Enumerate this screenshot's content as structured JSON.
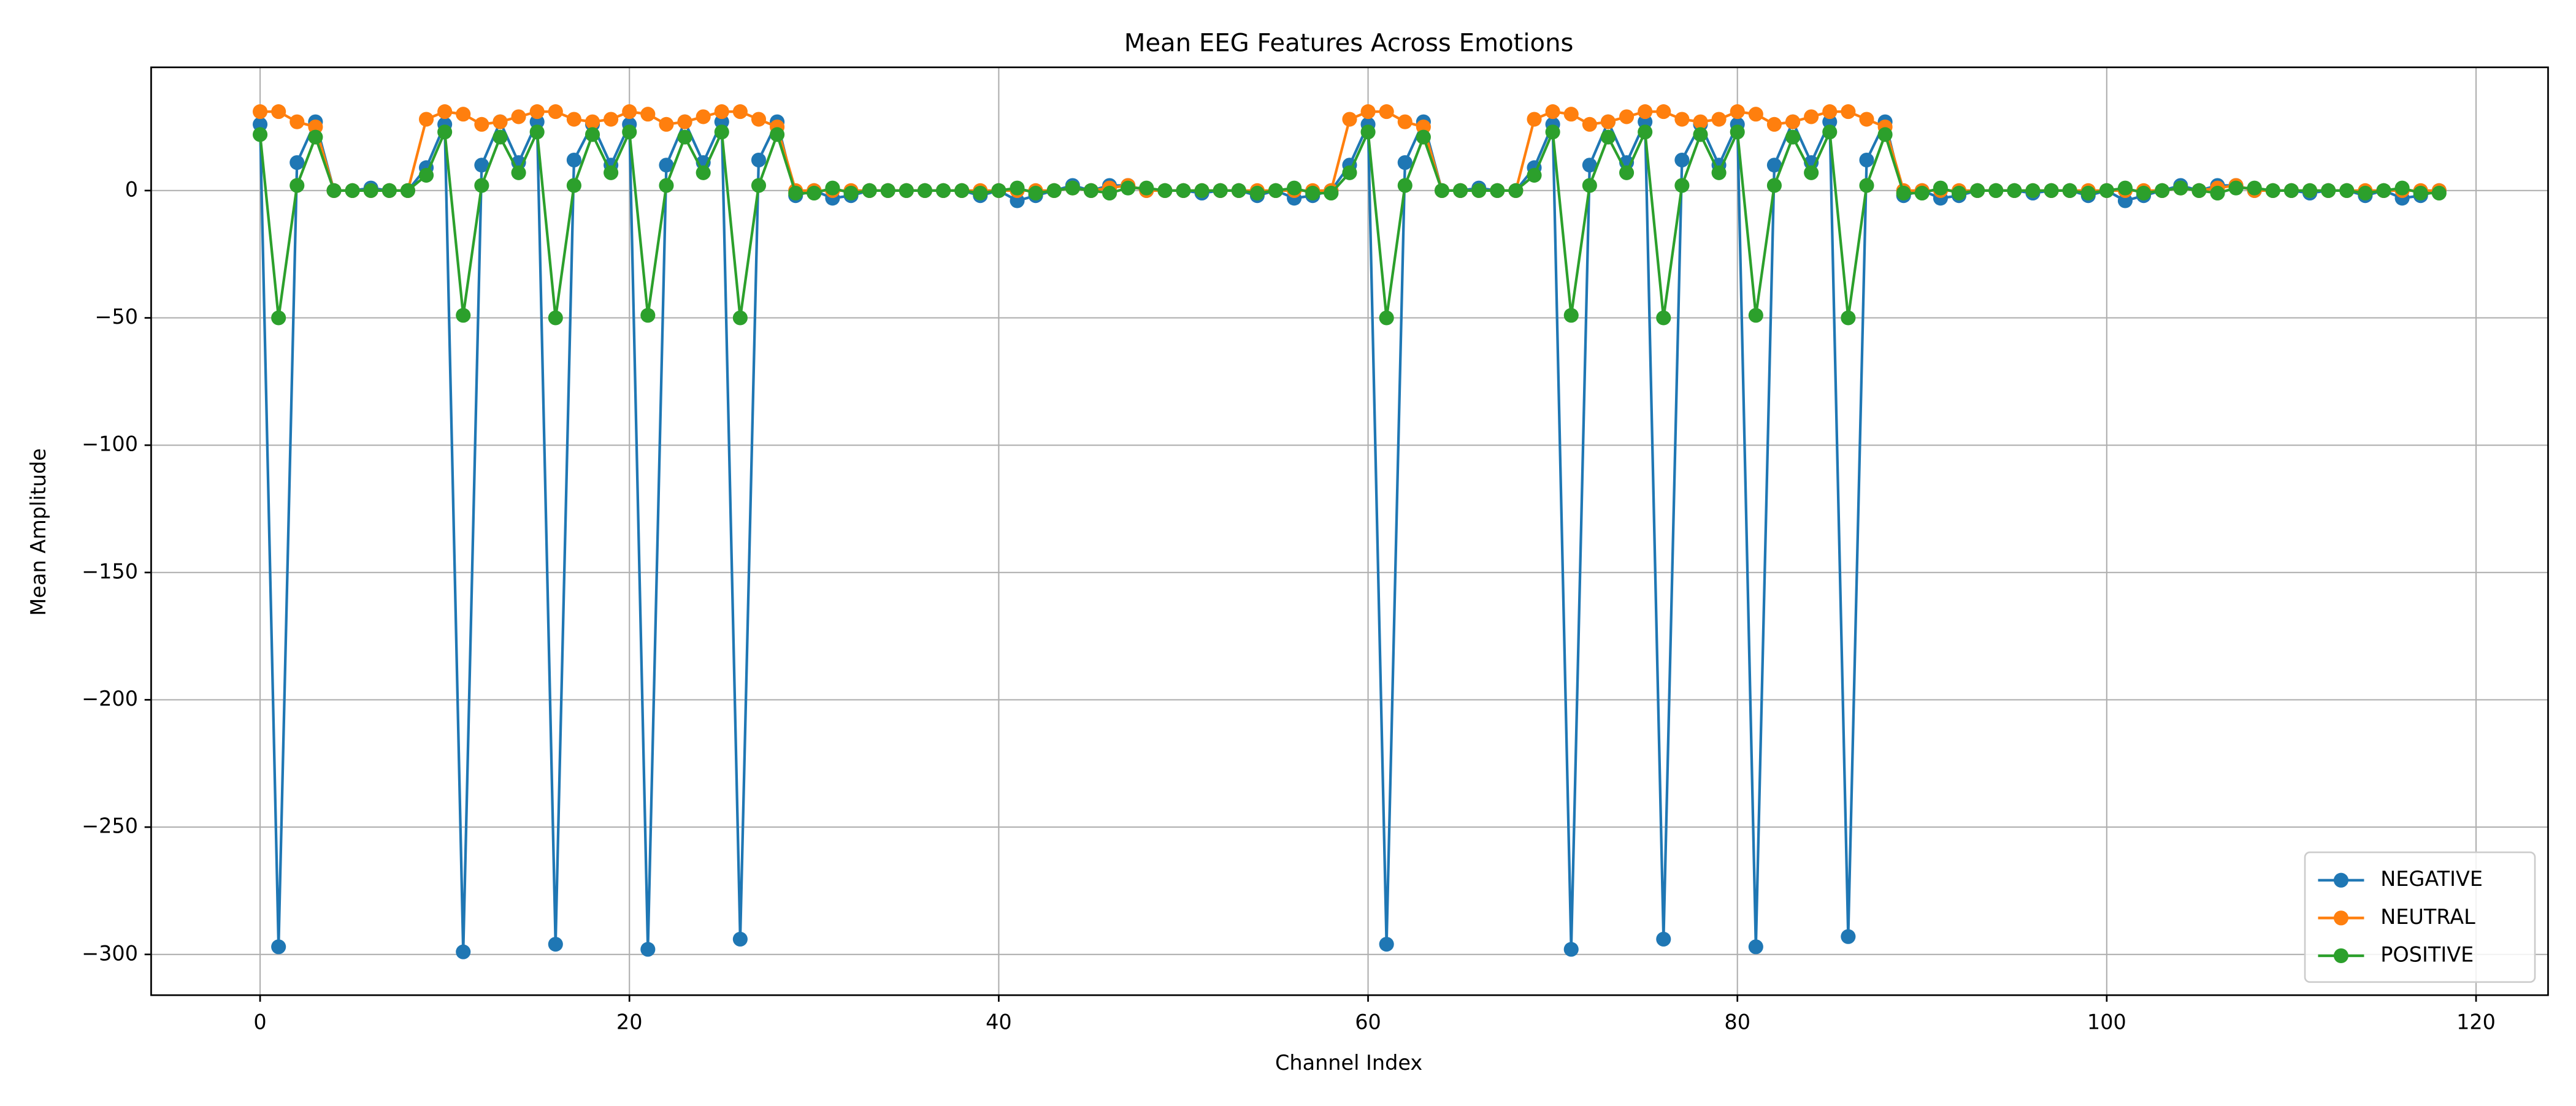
{
  "chart_data": {
    "type": "line",
    "title": "Mean EEG Features Across Emotions",
    "x_label": "Channel Index",
    "y_label": "Mean Amplitude",
    "x": [
      0,
      1,
      2,
      3,
      4,
      5,
      6,
      7,
      8,
      9,
      10,
      11,
      12,
      13,
      14,
      15,
      16,
      17,
      18,
      19,
      20,
      21,
      22,
      23,
      24,
      25,
      26,
      27,
      28,
      29,
      30,
      31,
      32,
      33,
      34,
      35,
      36,
      37,
      38,
      39,
      40,
      41,
      42,
      43,
      44,
      45,
      46,
      47,
      48,
      49,
      50,
      51,
      52,
      53,
      54,
      55,
      56,
      57,
      58,
      59,
      60,
      61,
      62,
      63,
      64,
      65,
      66,
      67,
      68,
      69,
      70,
      71,
      72,
      73,
      74,
      75,
      76,
      77,
      78,
      79,
      80,
      81,
      82,
      83,
      84,
      85,
      86,
      87,
      88,
      89,
      90,
      91,
      92,
      93,
      94,
      95,
      96,
      97,
      98,
      99,
      100,
      101,
      102,
      103,
      104,
      105,
      106,
      107,
      108,
      109,
      110,
      111,
      112,
      113,
      114,
      115,
      116,
      117,
      118
    ],
    "series": [
      {
        "name": "NEGATIVE",
        "color": "#1f77b4",
        "values": [
          26,
          -297,
          11,
          27,
          0,
          0,
          1,
          0,
          0,
          9,
          26,
          -299,
          10,
          27,
          11,
          27,
          -296,
          12,
          26,
          10,
          26,
          -298,
          10,
          27,
          11,
          27,
          -294,
          12,
          27,
          -2,
          0,
          -3,
          -2,
          0,
          0,
          0,
          0,
          0,
          0,
          -2,
          0,
          -4,
          -2,
          0,
          2,
          0,
          2,
          2,
          0,
          0,
          0,
          -1,
          0,
          0,
          -2,
          0,
          -3,
          -2,
          0,
          10,
          26,
          -296,
          11,
          27,
          0,
          0,
          1,
          0,
          0,
          9,
          26,
          -298,
          10,
          27,
          11,
          27,
          -294,
          12,
          26,
          10,
          26,
          -297,
          10,
          27,
          11,
          27,
          -293,
          12,
          27,
          -2,
          0,
          -3,
          -2,
          0,
          0,
          0,
          -1,
          0,
          0,
          -2,
          0,
          -4,
          -2,
          0,
          2,
          0,
          2,
          2,
          0,
          0,
          0,
          -1,
          0,
          0,
          -2,
          0,
          -3,
          -2,
          0
        ]
      },
      {
        "name": "NEUTRAL",
        "color": "#ff7f0e",
        "values": [
          31,
          31,
          27,
          25,
          0,
          0,
          0,
          0,
          0,
          28,
          31,
          30,
          26,
          27,
          29,
          31,
          31,
          28,
          27,
          28,
          31,
          30,
          26,
          27,
          29,
          31,
          31,
          28,
          25,
          0,
          0,
          0,
          0,
          0,
          0,
          0,
          0,
          0,
          0,
          0,
          0,
          0,
          0,
          0,
          1,
          0,
          1,
          2,
          0,
          0,
          0,
          0,
          0,
          0,
          0,
          0,
          0,
          0,
          0,
          28,
          31,
          31,
          27,
          25,
          0,
          0,
          0,
          0,
          0,
          28,
          31,
          30,
          26,
          27,
          29,
          31,
          31,
          28,
          27,
          28,
          31,
          30,
          26,
          27,
          29,
          31,
          31,
          28,
          25,
          0,
          0,
          0,
          0,
          0,
          0,
          0,
          0,
          0,
          0,
          0,
          0,
          0,
          0,
          0,
          1,
          0,
          1,
          2,
          0,
          0,
          0,
          0,
          0,
          0,
          0,
          0,
          0,
          0,
          0
        ]
      },
      {
        "name": "POSITIVE",
        "color": "#2ca02c",
        "values": [
          22,
          -50,
          2,
          21,
          0,
          0,
          0,
          0,
          0,
          6,
          23,
          -49,
          2,
          21,
          7,
          23,
          -50,
          2,
          22,
          7,
          23,
          -49,
          2,
          21,
          7,
          23,
          -50,
          2,
          22,
          -1,
          -1,
          1,
          -1,
          0,
          0,
          0,
          0,
          0,
          0,
          -1,
          0,
          1,
          -1,
          0,
          1,
          0,
          -1,
          1,
          1,
          0,
          0,
          0,
          0,
          0,
          -1,
          0,
          1,
          -1,
          -1,
          7,
          23,
          -50,
          2,
          21,
          0,
          0,
          0,
          0,
          0,
          6,
          23,
          -49,
          2,
          21,
          7,
          23,
          -50,
          2,
          22,
          7,
          23,
          -49,
          2,
          21,
          7,
          23,
          -50,
          2,
          22,
          -1,
          -1,
          1,
          -1,
          0,
          0,
          0,
          0,
          0,
          0,
          -1,
          0,
          1,
          -1,
          0,
          1,
          0,
          -1,
          1,
          1,
          0,
          0,
          0,
          0,
          0,
          -1,
          0,
          1,
          -1,
          -1
        ]
      }
    ],
    "xlim": [
      -5.9,
      123.9
    ],
    "ylim": [
      -316,
      48.4
    ],
    "xticks": [
      0,
      20,
      40,
      60,
      80,
      100,
      120
    ],
    "yticks": [
      {
        "value": -300,
        "label": "−300"
      },
      {
        "value": -250,
        "label": "−250"
      },
      {
        "value": -200,
        "label": "−200"
      },
      {
        "value": -150,
        "label": "−150"
      },
      {
        "value": -100,
        "label": "−100"
      },
      {
        "value": -50,
        "label": "−50"
      },
      0
    ],
    "grid": true,
    "legend": "lower right"
  }
}
